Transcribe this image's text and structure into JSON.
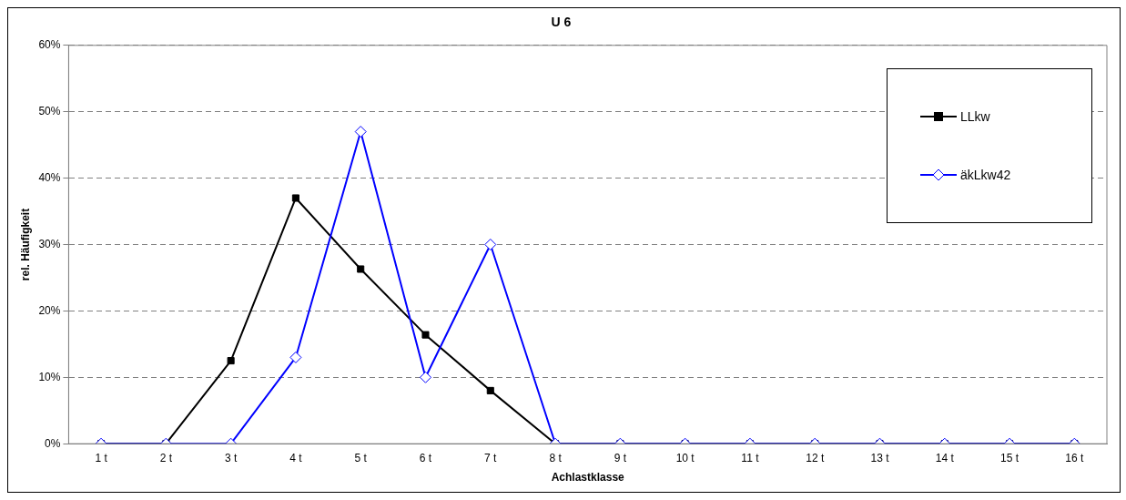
{
  "chart_data": {
    "type": "line",
    "title": "U 6",
    "xlabel": "Achlastklasse",
    "ylabel": "rel. Häufigkeit",
    "categories": [
      "1 t",
      "2 t",
      "3 t",
      "4 t",
      "5 t",
      "6 t",
      "7 t",
      "8 t",
      "9 t",
      "10 t",
      "11 t",
      "12 t",
      "13 t",
      "14 t",
      "15 t",
      "16 t"
    ],
    "series": [
      {
        "name": "LLkw",
        "color": "#000000",
        "marker": "square",
        "values": [
          0,
          0,
          12.5,
          37,
          26.3,
          16.4,
          8,
          0,
          0,
          0,
          0,
          0,
          0,
          0,
          0,
          0
        ]
      },
      {
        "name": "äkLkw42",
        "color": "#0000ff",
        "marker": "diamond",
        "values": [
          0,
          0,
          0,
          13,
          47,
          10,
          30,
          0,
          0,
          0,
          0,
          0,
          0,
          0,
          0,
          0
        ]
      }
    ],
    "ylim": [
      0,
      60
    ],
    "yticks": [
      {
        "value": 0,
        "label": "0%"
      },
      {
        "value": 10,
        "label": "10%"
      },
      {
        "value": 20,
        "label": "20%"
      },
      {
        "value": 30,
        "label": "30%"
      },
      {
        "value": 40,
        "label": "40%"
      },
      {
        "value": 50,
        "label": "50%"
      },
      {
        "value": 60,
        "label": "60%"
      }
    ],
    "grid": "y",
    "legend": "top right",
    "line_style": "solid"
  }
}
